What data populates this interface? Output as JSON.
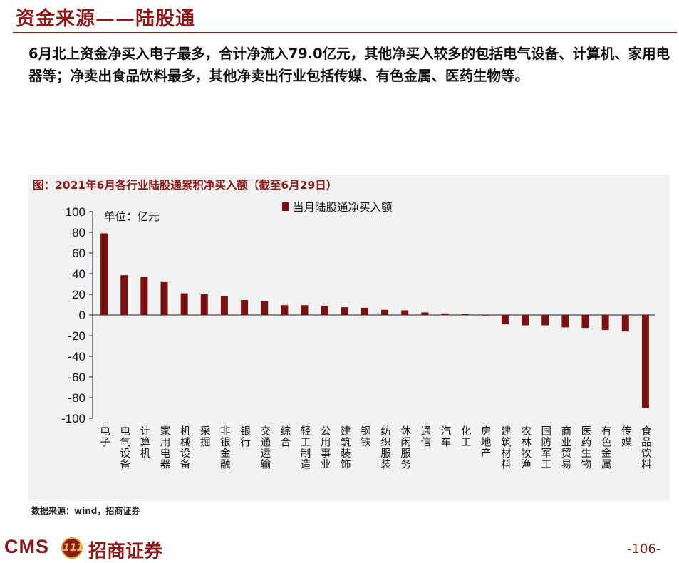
{
  "header": {
    "title": "资金来源——陆股通"
  },
  "intro_text": "6月北上资金净买入电子最多，合计净流入79.0亿元，其他净买入较多的包括电气设备、计算机、家用电器等；净卖出食品饮料最多，其他净卖出行业包括传媒、有色金属、医药生物等。",
  "chart_caption": "图：2021年6月各行业陆股通累积净买入额（截至6月29日）",
  "chart_data": {
    "type": "bar",
    "unit_label": "单位：亿元",
    "categories": [
      "电子",
      "电气设备",
      "计算机",
      "家用电器",
      "机械设备",
      "采掘",
      "非银金融",
      "银行",
      "交通运输",
      "综合",
      "轻工制造",
      "公用事业",
      "建筑装饰",
      "钢铁",
      "纺织服装",
      "休闲服务",
      "通信",
      "汽车",
      "化工",
      "房地产",
      "建筑材料",
      "农林牧渔",
      "国防军工",
      "商业贸易",
      "医药生物",
      "有色金属",
      "传媒",
      "食品饮料"
    ],
    "series": [
      {
        "name": "当月陆股通净买入额",
        "color": "#7b1010",
        "values": [
          79.0,
          38.5,
          37.0,
          32.5,
          21.0,
          20.0,
          18.0,
          14.5,
          13.5,
          9.5,
          9.5,
          9.0,
          7.5,
          7.0,
          5.0,
          4.5,
          2.5,
          1.5,
          1.0,
          -0.5,
          -9.0,
          -10.0,
          -10.0,
          -12.0,
          -12.5,
          -14.5,
          -16.0,
          -90.0
        ]
      }
    ],
    "yticks": [
      "100",
      "80",
      "60",
      "40",
      "20",
      "0",
      "-20",
      "-40",
      "-60",
      "-80",
      "-100"
    ],
    "ylim": [
      -100,
      100
    ],
    "legend_position": "top",
    "grid": false
  },
  "source_text": "数据来源：wind，招商证券",
  "logo": {
    "en": "CMS",
    "badge": "111",
    "cn": "招商证券"
  },
  "page_number": "-106-"
}
